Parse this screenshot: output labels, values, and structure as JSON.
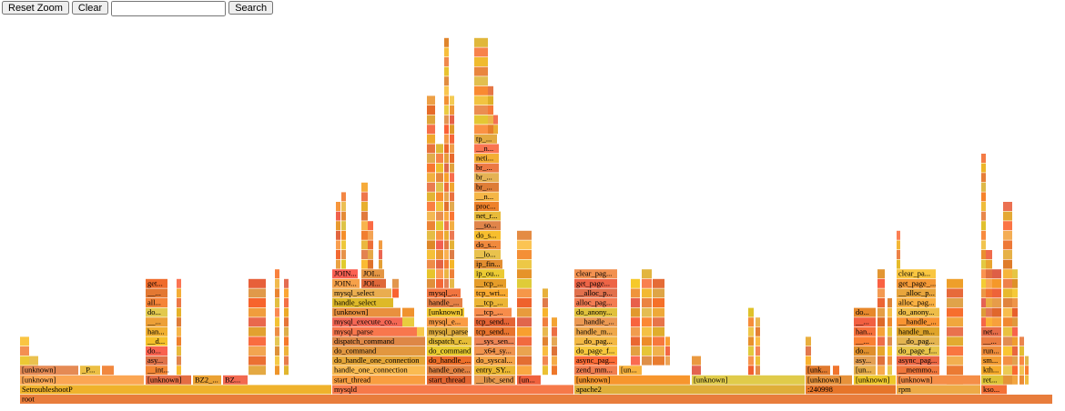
{
  "toolbar": {
    "reset": "Reset Zoom",
    "clear": "Clear",
    "search": "Search"
  },
  "frames": [
    "root",
    "SetroubleshootP",
    "mysqld",
    "apache2",
    ":240998",
    "rpm",
    "kso...",
    "[unknown]",
    "[unknown]",
    "BZ2_...",
    "BZ...",
    "start_thread",
    "start_thread",
    "__libc_send",
    "[un...",
    "[unknown]",
    "[unknown]",
    "[unknown]",
    "[unknown]",
    "[unknown]",
    "ret...",
    "[unknown]",
    "_P...",
    "__int...",
    "handle_one_connection",
    "handle_one...",
    "entry_SY...",
    "zend_mm...",
    "[un...",
    "[unk...",
    "[un...",
    "__memmo...",
    "kth...",
    "asy...",
    "do_handle_one_connection",
    "do_handle_...",
    "do_syscal...",
    "async_pag...",
    "asy...",
    "async_pag...",
    "sm...",
    "do...",
    "do_command",
    "do_command",
    "__x64_sy...",
    "do_page_f...",
    "do...",
    "do_page_f...",
    "run...",
    "__d...",
    "dispatch_command",
    "dispatch_c...",
    "__sys_sen...",
    "__do_pag...",
    "__...",
    "__do_pag...",
    "__...",
    "han...",
    "mysql_parse",
    "mysql_parse",
    "tcp_send...",
    "handle_m...",
    "han...",
    "handle_m...",
    "net...",
    "__...",
    "mysql_execute_co...",
    "mysql_e...",
    "tcp_send...",
    "__handle_...",
    "__...",
    "__handle_...",
    "do...",
    "[unknown]",
    "[unknown]",
    "__tcp_...",
    "do_anony...",
    "do...",
    "do_anony...",
    "all...",
    "handle_select",
    "handle_...",
    "__tcp_...",
    "alloc_pag...",
    "alloc_pag...",
    "__...",
    "mysql_select",
    "mysql_...",
    "tcp_wri...",
    "__alloc_p...",
    "__alloc_p...",
    "get...",
    "JOIN...",
    "JOI...",
    "__tcp_...",
    "get_page...",
    "get_page_...",
    "JOIN...",
    "JOI...",
    "ip_ou...",
    "clear_pag...",
    "clear_pa...",
    "ip_fin...",
    "__lo...",
    "do_s...",
    "do_s...",
    "__so...",
    "net_r...",
    "proc...",
    "__n...",
    "br_...",
    "br_...",
    "br_...",
    "neti...",
    "__n...",
    "tp_..."
  ]
}
